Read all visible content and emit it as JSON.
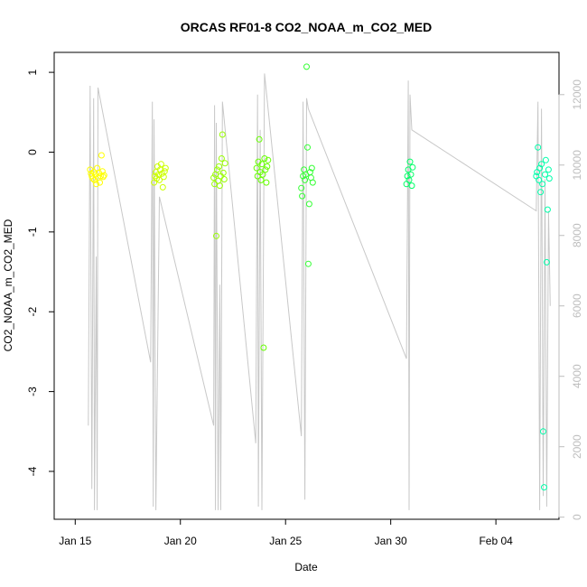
{
  "chart_data": {
    "type": "scatter",
    "title": "ORCAS RF01-8 CO2_NOAA_m_CO2_MED",
    "xlabel": "Date",
    "ylabel": "CO2_NOAA_m_CO2_MED",
    "x_axis": {
      "type": "date",
      "range": [
        "2016-01-14T00:00",
        "2016-02-07T00:00"
      ],
      "ticks": [
        {
          "value": "2016-01-15",
          "label": "Jan 15"
        },
        {
          "value": "2016-01-20",
          "label": "Jan 20"
        },
        {
          "value": "2016-01-25",
          "label": "Jan 25"
        },
        {
          "value": "2016-01-30",
          "label": "Jan 30"
        },
        {
          "value": "2016-02-04",
          "label": "Feb 04"
        }
      ]
    },
    "y_left": {
      "range": [
        -4.6,
        1.25
      ],
      "ticks": [
        1,
        0,
        -1,
        -2,
        -3,
        -4
      ],
      "tick_labels": [
        "1",
        "0",
        "-1",
        "-2",
        "-3",
        "-4"
      ]
    },
    "y_right": {
      "range": [
        -60,
        13200
      ],
      "ticks": [
        0,
        2000,
        4000,
        6000,
        8000,
        10000,
        12000
      ],
      "tick_labels": [
        "0",
        "2000",
        "4000",
        "6000",
        "8000",
        "10000",
        "12000"
      ],
      "color": "#bdbdbd"
    },
    "grid": false,
    "legend": "none",
    "series": [
      {
        "color": "#FFFF00",
        "points": [
          [
            "2016-01-15T17:00",
            -0.22
          ],
          [
            "2016-01-15T18:00",
            -0.27
          ],
          [
            "2016-01-15T19:00",
            -0.3
          ],
          [
            "2016-01-15T20:00",
            -0.33
          ],
          [
            "2016-01-15T21:00",
            -0.25
          ],
          [
            "2016-01-15T22:00",
            -0.35
          ],
          [
            "2016-01-15T23:00",
            -0.28
          ],
          [
            "2016-01-16T00:00",
            -0.4
          ],
          [
            "2016-01-16T01:00",
            -0.2
          ],
          [
            "2016-01-16T02:00",
            -0.32
          ],
          [
            "2016-01-16T03:00",
            -0.26
          ],
          [
            "2016-01-16T04:00",
            -0.38
          ],
          [
            "2016-01-16T05:00",
            -0.3
          ],
          [
            "2016-01-16T06:00",
            -0.04
          ],
          [
            "2016-01-16T07:00",
            -0.24
          ],
          [
            "2016-01-16T08:00",
            -0.31
          ],
          [
            "2016-01-16T09:00",
            -0.29
          ]
        ]
      },
      {
        "color": "#CCFF00",
        "points": [
          [
            "2016-01-18T18:00",
            -0.38
          ],
          [
            "2016-01-18T19:00",
            -0.3
          ],
          [
            "2016-01-18T20:00",
            -0.25
          ],
          [
            "2016-01-18T21:00",
            -0.33
          ],
          [
            "2016-01-18T22:00",
            -0.18
          ],
          [
            "2016-01-18T23:00",
            -0.28
          ],
          [
            "2016-01-19T00:00",
            -0.35
          ],
          [
            "2016-01-19T01:00",
            -0.22
          ],
          [
            "2016-01-19T02:00",
            -0.15
          ],
          [
            "2016-01-19T03:00",
            -0.27
          ],
          [
            "2016-01-19T04:00",
            -0.44
          ],
          [
            "2016-01-19T05:00",
            -0.31
          ],
          [
            "2016-01-19T06:00",
            -0.24
          ],
          [
            "2016-01-19T07:00",
            -0.2
          ]
        ]
      },
      {
        "color": "#99FF00",
        "points": [
          [
            "2016-01-21T14:00",
            -0.32
          ],
          [
            "2016-01-21T15:00",
            -0.4
          ],
          [
            "2016-01-21T16:00",
            -0.28
          ],
          [
            "2016-01-21T17:00",
            -1.05
          ],
          [
            "2016-01-21T18:00",
            -0.22
          ],
          [
            "2016-01-21T19:00",
            -0.36
          ],
          [
            "2016-01-21T20:00",
            -0.18
          ],
          [
            "2016-01-21T21:00",
            -0.42
          ],
          [
            "2016-01-21T22:00",
            -0.3
          ],
          [
            "2016-01-21T23:00",
            -0.08
          ],
          [
            "2016-01-22T00:00",
            0.22
          ],
          [
            "2016-01-22T01:00",
            -0.26
          ],
          [
            "2016-01-22T02:00",
            -0.34
          ],
          [
            "2016-01-22T03:00",
            -0.14
          ]
        ]
      },
      {
        "color": "#66FF00",
        "points": [
          [
            "2016-01-23T15:00",
            -0.2
          ],
          [
            "2016-01-23T16:00",
            -0.3
          ],
          [
            "2016-01-23T17:00",
            -0.12
          ],
          [
            "2016-01-23T18:00",
            0.16
          ],
          [
            "2016-01-23T19:00",
            -0.25
          ],
          [
            "2016-01-23T20:00",
            -0.35
          ],
          [
            "2016-01-23T21:00",
            -0.15
          ],
          [
            "2016-01-23T22:00",
            -0.28
          ],
          [
            "2016-01-23T23:00",
            -2.45
          ],
          [
            "2016-01-24T00:00",
            -0.08
          ],
          [
            "2016-01-24T01:00",
            -0.22
          ],
          [
            "2016-01-24T02:00",
            -0.38
          ],
          [
            "2016-01-24T03:00",
            -0.18
          ],
          [
            "2016-01-24T04:00",
            -0.1
          ]
        ]
      },
      {
        "color": "#33FF33",
        "points": [
          [
            "2016-01-25T18:00",
            -0.45
          ],
          [
            "2016-01-25T19:00",
            -0.55
          ],
          [
            "2016-01-25T20:00",
            -0.3
          ],
          [
            "2016-01-25T21:00",
            -0.22
          ],
          [
            "2016-01-25T22:00",
            -0.35
          ],
          [
            "2016-01-25T23:00",
            -0.28
          ],
          [
            "2016-01-26T00:00",
            1.07
          ],
          [
            "2016-01-26T01:00",
            0.06
          ],
          [
            "2016-01-26T02:00",
            -1.4
          ],
          [
            "2016-01-26T03:00",
            -0.65
          ],
          [
            "2016-01-26T04:00",
            -0.25
          ],
          [
            "2016-01-26T05:00",
            -0.32
          ],
          [
            "2016-01-26T06:00",
            -0.2
          ],
          [
            "2016-01-26T07:00",
            -0.38
          ]
        ]
      },
      {
        "color": "#00FF66",
        "points": [
          [
            "2016-01-30T18:00",
            -0.4
          ],
          [
            "2016-01-30T19:00",
            -0.3
          ],
          [
            "2016-01-30T20:00",
            -0.22
          ],
          [
            "2016-01-30T21:00",
            -0.35
          ],
          [
            "2016-01-30T22:00",
            -0.12
          ],
          [
            "2016-01-30T23:00",
            -0.28
          ],
          [
            "2016-01-31T00:00",
            -0.42
          ],
          [
            "2016-01-31T01:00",
            -0.19
          ]
        ]
      },
      {
        "color": "#00FFAA",
        "points": [
          [
            "2016-02-05T22:00",
            -0.3
          ],
          [
            "2016-02-05T23:00",
            -0.25
          ],
          [
            "2016-02-06T00:00",
            0.06
          ],
          [
            "2016-02-06T01:00",
            -0.35
          ],
          [
            "2016-02-06T02:00",
            -0.2
          ],
          [
            "2016-02-06T03:00",
            -0.5
          ],
          [
            "2016-02-06T04:00",
            -0.15
          ],
          [
            "2016-02-06T05:00",
            -0.4
          ],
          [
            "2016-02-06T06:00",
            -3.5
          ],
          [
            "2016-02-06T07:00",
            -4.2
          ],
          [
            "2016-02-06T08:00",
            -0.28
          ],
          [
            "2016-02-06T09:00",
            -0.1
          ],
          [
            "2016-02-06T10:00",
            -1.38
          ],
          [
            "2016-02-06T11:00",
            -0.72
          ],
          [
            "2016-02-06T12:00",
            -0.22
          ],
          [
            "2016-02-06T13:00",
            -0.33
          ]
        ]
      }
    ],
    "secondary_line": {
      "axis": "right",
      "color": "#c8c8c8",
      "points": [
        [
          "2016-01-15T15:00",
          2600
        ],
        [
          "2016-01-15T17:00",
          12250
        ],
        [
          "2016-01-15T19:00",
          800
        ],
        [
          "2016-01-15T21:00",
          11900
        ],
        [
          "2016-01-15T22:00",
          200
        ],
        [
          "2016-01-16T00:00",
          7400
        ],
        [
          "2016-01-16T01:00",
          200
        ],
        [
          "2016-01-16T02:00",
          12200
        ],
        [
          "2016-01-18T14:00",
          4400
        ],
        [
          "2016-01-18T16:00",
          11800
        ],
        [
          "2016-01-18T17:00",
          300
        ],
        [
          "2016-01-18T18:00",
          11300
        ],
        [
          "2016-01-18T20:00",
          200
        ],
        [
          "2016-01-19T00:00",
          9100
        ],
        [
          "2016-01-21T14:00",
          2600
        ],
        [
          "2016-01-21T15:00",
          11700
        ],
        [
          "2016-01-21T16:00",
          200
        ],
        [
          "2016-01-21T17:00",
          11200
        ],
        [
          "2016-01-21T19:00",
          200
        ],
        [
          "2016-01-21T21:00",
          6600
        ],
        [
          "2016-01-21T22:00",
          200
        ],
        [
          "2016-01-22T00:00",
          11800
        ],
        [
          "2016-01-23T14:00",
          2100
        ],
        [
          "2016-01-23T16:00",
          12000
        ],
        [
          "2016-01-23T17:00",
          300
        ],
        [
          "2016-01-23T19:00",
          11000
        ],
        [
          "2016-01-23T21:00",
          200
        ],
        [
          "2016-01-24T00:00",
          12600
        ],
        [
          "2016-01-25T18:00",
          2300
        ],
        [
          "2016-01-25T20:00",
          11800
        ],
        [
          "2016-01-25T22:00",
          500
        ],
        [
          "2016-01-26T00:00",
          11900
        ],
        [
          "2016-01-26T02:00",
          11600
        ],
        [
          "2016-01-30T18:00",
          4500
        ],
        [
          "2016-01-30T20:00",
          12400
        ],
        [
          "2016-01-30T21:00",
          200
        ],
        [
          "2016-01-30T22:00",
          12000
        ],
        [
          "2016-01-31T00:00",
          11000
        ],
        [
          "2016-02-05T22:00",
          8700
        ],
        [
          "2016-02-06T00:00",
          11800
        ],
        [
          "2016-02-06T02:00",
          200
        ],
        [
          "2016-02-06T04:00",
          11600
        ],
        [
          "2016-02-06T06:00",
          600
        ],
        [
          "2016-02-06T08:00",
          9600
        ],
        [
          "2016-02-06T10:00",
          300
        ],
        [
          "2016-02-06T12:00",
          8700
        ],
        [
          "2016-02-06T14:00",
          6000
        ]
      ]
    }
  }
}
